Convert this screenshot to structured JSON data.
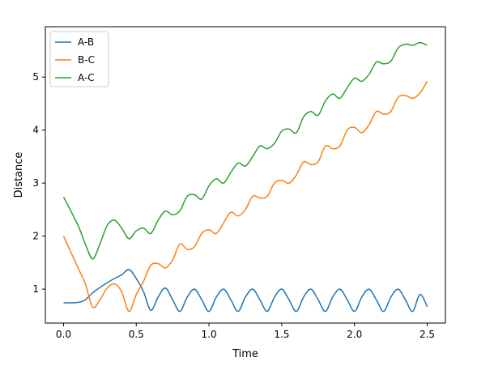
{
  "chart_data": {
    "type": "line",
    "title": "",
    "xlabel": "Time",
    "ylabel": "Distance",
    "xlim": [
      -0.125,
      2.625
    ],
    "ylim": [
      0.36,
      5.95
    ],
    "xticks": [
      0.0,
      0.5,
      1.0,
      1.5,
      2.0,
      2.5
    ],
    "xtick_labels": [
      "0.0",
      "0.5",
      "1.0",
      "1.5",
      "2.0",
      "2.5"
    ],
    "yticks": [
      1,
      2,
      3,
      4,
      5
    ],
    "ytick_labels": [
      "1",
      "2",
      "3",
      "4",
      "5"
    ],
    "grid": false,
    "legend_position": "top-left",
    "series": [
      {
        "name": "A-B",
        "color": "#1f77b4",
        "x": [
          0.0,
          0.1,
          0.15,
          0.2,
          0.25,
          0.3,
          0.35,
          0.4,
          0.45,
          0.5,
          0.55,
          0.6,
          0.65,
          0.7,
          0.75,
          0.8,
          0.85,
          0.9,
          0.95,
          1.0,
          1.05,
          1.1,
          1.15,
          1.2,
          1.25,
          1.3,
          1.35,
          1.4,
          1.45,
          1.5,
          1.55,
          1.6,
          1.65,
          1.7,
          1.75,
          1.8,
          1.85,
          1.9,
          1.95,
          2.0,
          2.05,
          2.1,
          2.15,
          2.2,
          2.25,
          2.3,
          2.35,
          2.4,
          2.45,
          2.5
        ],
        "y": [
          0.74,
          0.75,
          0.8,
          0.93,
          1.03,
          1.12,
          1.2,
          1.27,
          1.37,
          1.2,
          0.95,
          0.6,
          0.85,
          1.02,
          0.8,
          0.58,
          0.85,
          1.0,
          0.8,
          0.58,
          0.85,
          1.0,
          0.8,
          0.58,
          0.85,
          1.0,
          0.8,
          0.58,
          0.85,
          1.0,
          0.8,
          0.58,
          0.85,
          1.0,
          0.8,
          0.58,
          0.85,
          1.0,
          0.8,
          0.58,
          0.85,
          1.0,
          0.8,
          0.58,
          0.85,
          1.0,
          0.8,
          0.58,
          0.9,
          0.67
        ]
      },
      {
        "name": "B-C",
        "color": "#ff7f0e",
        "x": [
          0.0,
          0.1,
          0.15,
          0.2,
          0.25,
          0.3,
          0.35,
          0.4,
          0.45,
          0.5,
          0.55,
          0.6,
          0.65,
          0.7,
          0.75,
          0.8,
          0.85,
          0.9,
          0.95,
          1.0,
          1.05,
          1.1,
          1.15,
          1.2,
          1.25,
          1.3,
          1.35,
          1.4,
          1.45,
          1.5,
          1.55,
          1.6,
          1.65,
          1.7,
          1.75,
          1.8,
          1.85,
          1.9,
          1.95,
          2.0,
          2.05,
          2.1,
          2.15,
          2.2,
          2.25,
          2.3,
          2.35,
          2.4,
          2.45,
          2.5
        ],
        "y": [
          2.0,
          1.4,
          1.1,
          0.66,
          0.8,
          1.02,
          1.1,
          0.95,
          0.58,
          0.9,
          1.15,
          1.45,
          1.48,
          1.4,
          1.55,
          1.85,
          1.75,
          1.8,
          2.05,
          2.12,
          2.05,
          2.25,
          2.45,
          2.38,
          2.5,
          2.75,
          2.72,
          2.75,
          3.0,
          3.05,
          3.0,
          3.15,
          3.4,
          3.35,
          3.4,
          3.7,
          3.65,
          3.7,
          4.0,
          4.05,
          3.95,
          4.1,
          4.35,
          4.3,
          4.35,
          4.62,
          4.65,
          4.6,
          4.7,
          4.92
        ]
      },
      {
        "name": "A-C",
        "color": "#2ca02c",
        "x": [
          0.0,
          0.1,
          0.15,
          0.2,
          0.25,
          0.3,
          0.35,
          0.4,
          0.45,
          0.5,
          0.55,
          0.6,
          0.65,
          0.7,
          0.75,
          0.8,
          0.85,
          0.9,
          0.95,
          1.0,
          1.05,
          1.1,
          1.15,
          1.2,
          1.25,
          1.3,
          1.35,
          1.4,
          1.45,
          1.5,
          1.55,
          1.6,
          1.65,
          1.7,
          1.75,
          1.8,
          1.85,
          1.9,
          1.95,
          2.0,
          2.05,
          2.1,
          2.15,
          2.2,
          2.25,
          2.3,
          2.35,
          2.4,
          2.45,
          2.5
        ],
        "y": [
          2.74,
          2.2,
          1.85,
          1.57,
          1.85,
          2.2,
          2.3,
          2.15,
          1.95,
          2.1,
          2.15,
          2.05,
          2.3,
          2.47,
          2.4,
          2.48,
          2.75,
          2.78,
          2.7,
          2.95,
          3.08,
          3.0,
          3.2,
          3.38,
          3.32,
          3.5,
          3.7,
          3.65,
          3.75,
          3.98,
          4.02,
          3.95,
          4.25,
          4.35,
          4.28,
          4.55,
          4.68,
          4.6,
          4.8,
          4.98,
          4.92,
          5.05,
          5.28,
          5.25,
          5.3,
          5.55,
          5.62,
          5.6,
          5.65,
          5.6
        ]
      }
    ]
  }
}
